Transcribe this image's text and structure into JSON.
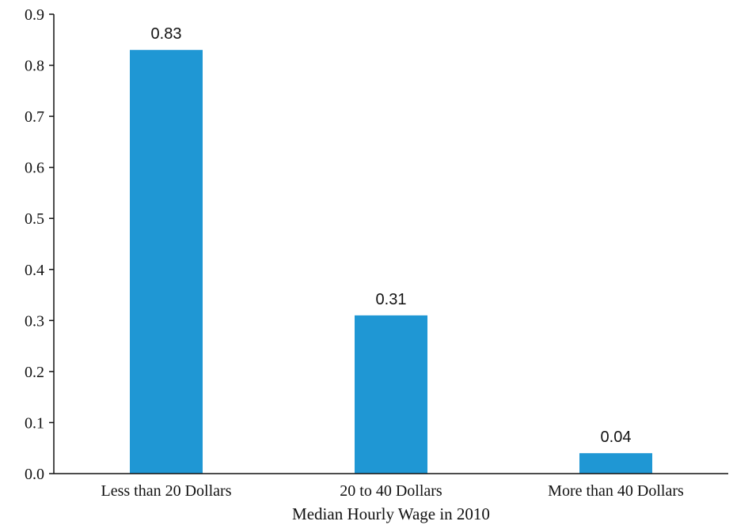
{
  "chart_data": {
    "type": "bar",
    "title": "",
    "xlabel": "Median Hourly Wage in 2010",
    "ylabel": "",
    "categories": [
      "Less than 20 Dollars",
      "20 to 40 Dollars",
      "More than 40 Dollars"
    ],
    "values": [
      0.83,
      0.31,
      0.04
    ],
    "value_labels": [
      "0.83",
      "0.31",
      "0.04"
    ],
    "ylim": [
      0,
      0.9
    ],
    "yticks": [
      "0.0",
      "0.1",
      "0.2",
      "0.3",
      "0.4",
      "0.5",
      "0.6",
      "0.7",
      "0.8",
      "0.9"
    ],
    "bar_color": "#1f97d4",
    "grid": false,
    "legend": "none"
  }
}
